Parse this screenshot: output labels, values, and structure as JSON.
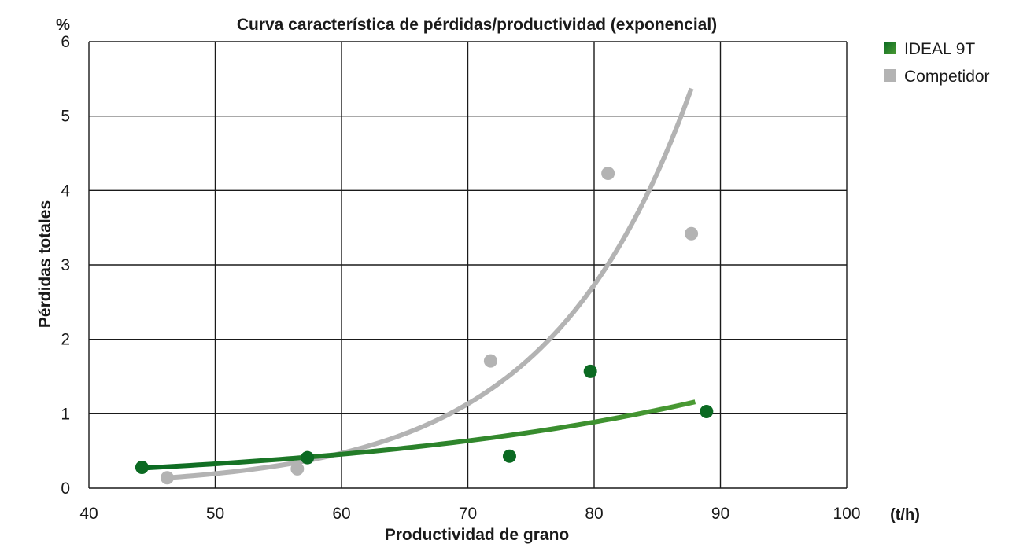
{
  "chart_data": {
    "type": "scatter",
    "title": "Curva característica de pérdidas/productividad (exponencial)",
    "xlabel": "Productividad de grano",
    "ylabel": "Pérdidas totales",
    "x_unit": "(t/h)",
    "y_unit": "%",
    "xlim": [
      40,
      100
    ],
    "ylim": [
      0,
      6
    ],
    "x_ticks": [
      40,
      50,
      60,
      70,
      80,
      90,
      100
    ],
    "y_ticks": [
      0,
      1,
      2,
      3,
      4,
      5,
      6
    ],
    "grid": true,
    "legend_position": "top-right",
    "series": [
      {
        "name": "IDEAL 9T",
        "color": "#0b6a22",
        "trend_color_end": "#4a9a33",
        "marker": "circle",
        "x": [
          44.2,
          57.3,
          73.3,
          79.7,
          88.9
        ],
        "y": [
          0.28,
          0.41,
          0.43,
          1.57,
          1.03
        ],
        "trendline": {
          "type": "exponential",
          "x_range": [
            44.2,
            88.0
          ],
          "y_start": 0.27,
          "y_end": 1.16
        }
      },
      {
        "name": "Competidor",
        "color": "#b3b3b3",
        "marker": "circle",
        "x": [
          46.2,
          56.5,
          71.8,
          81.1,
          87.7
        ],
        "y": [
          0.14,
          0.26,
          1.71,
          4.23,
          3.42
        ],
        "trendline": {
          "type": "exponential",
          "x_range": [
            46.2,
            87.7
          ],
          "y_start": 0.14,
          "y_end": 5.37
        }
      }
    ]
  }
}
